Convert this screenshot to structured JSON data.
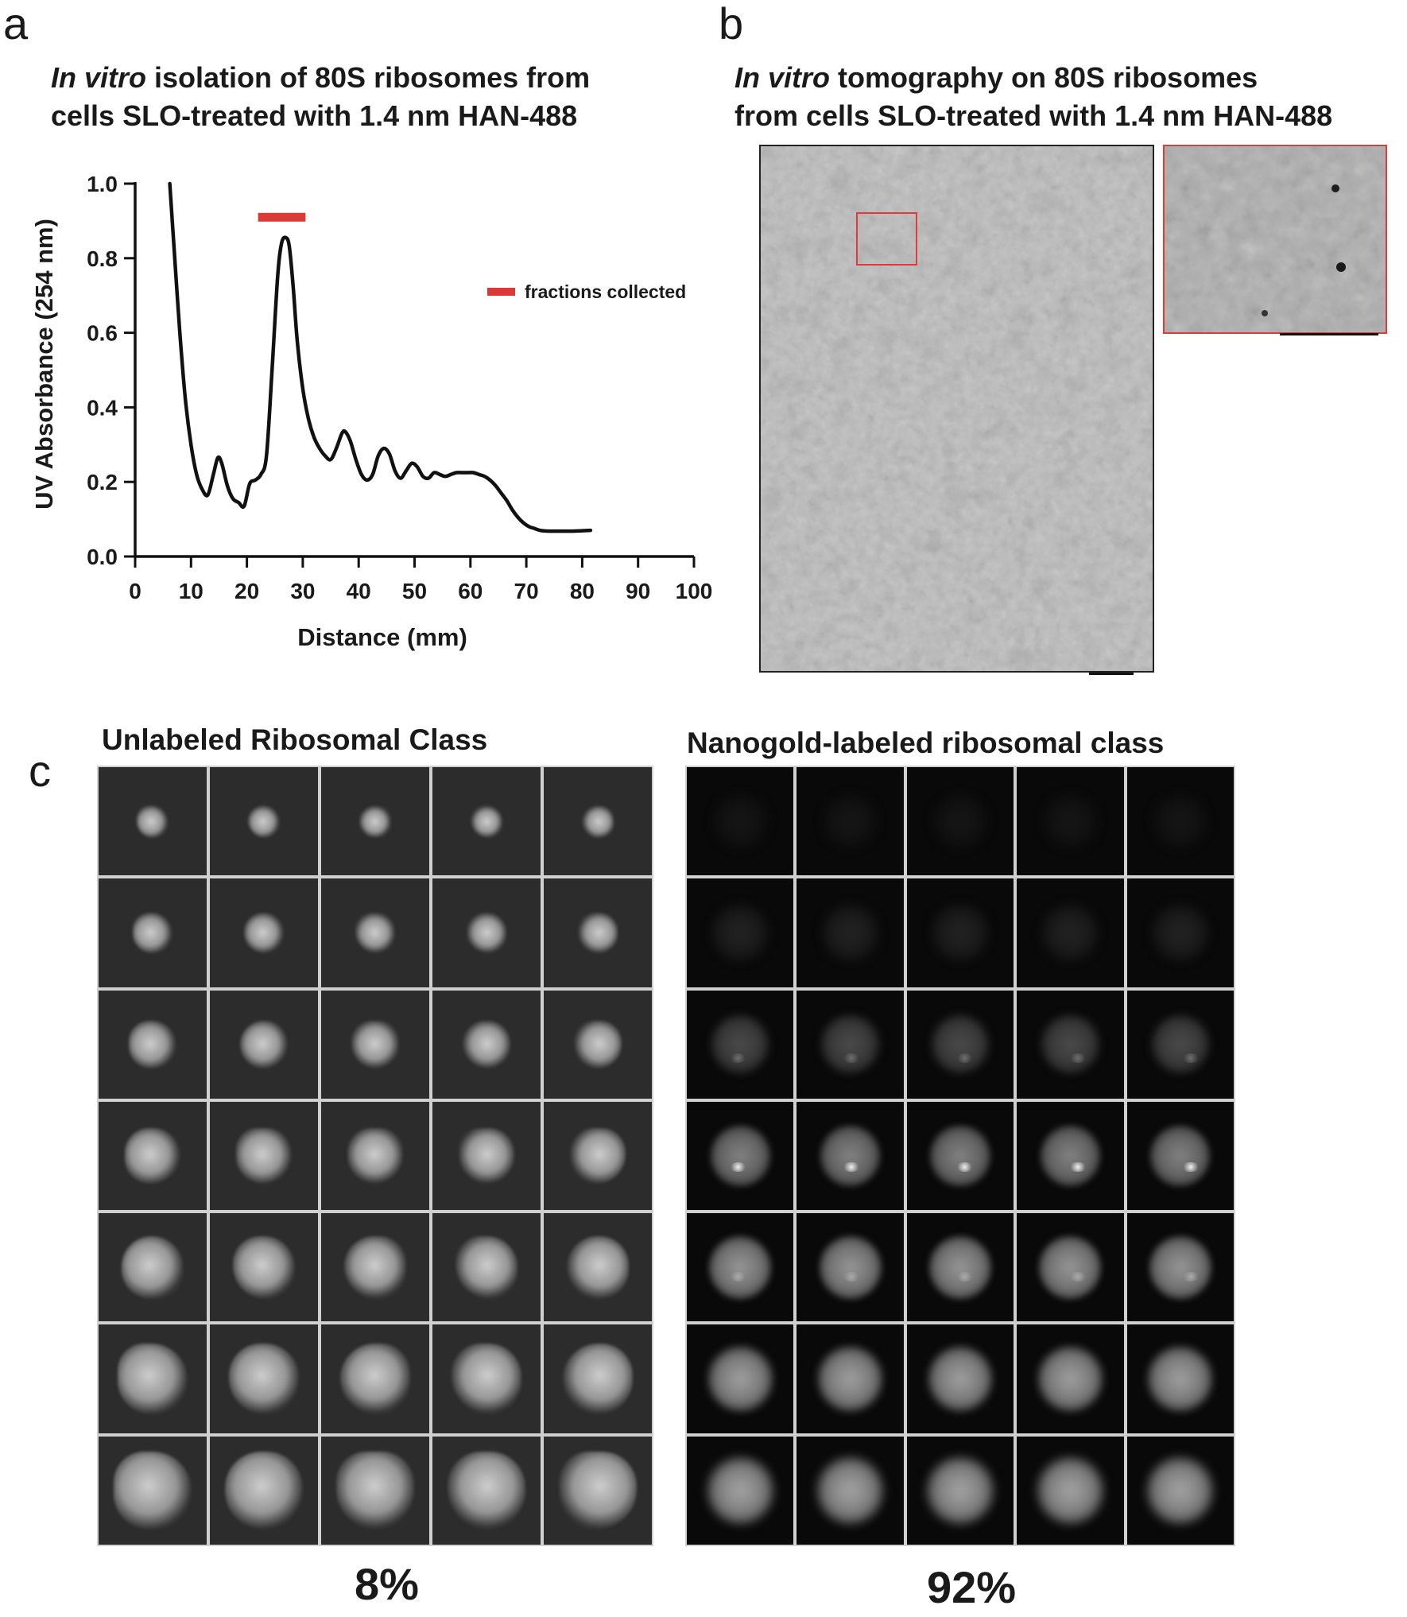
{
  "panel_a": {
    "letter": "a",
    "title_italic": "In vitro",
    "title_rest_line1": " isolation of 80S ribosomes from",
    "title_line2": "cells SLO-treated with 1.4 nm HAN-488"
  },
  "panel_b": {
    "letter": "b",
    "title_italic": "In vitro",
    "title_rest_line1": " tomography on 80S ribosomes",
    "title_line2": "from cells SLO-treated with 1.4 nm HAN-488"
  },
  "panel_c": {
    "letter": "c",
    "left_title": "Unlabeled Ribosomal Class",
    "right_title": "Nanogold-labeled ribosomal class",
    "left_percent": "8%",
    "right_percent": "92%",
    "rows": 7,
    "cols": 5
  },
  "chart_data": {
    "type": "line",
    "xlabel": "Distance (mm)",
    "ylabel": "UV Absorbance (254 nm)",
    "xlim": [
      0,
      100
    ],
    "ylim": [
      0,
      1.0
    ],
    "x_ticks": [
      "0",
      "10",
      "20",
      "30",
      "40",
      "50",
      "60",
      "70",
      "80",
      "90",
      "100"
    ],
    "y_ticks": [
      "0.0",
      "0.2",
      "0.4",
      "0.6",
      "0.8",
      "1.0"
    ],
    "series": [
      {
        "x": [
          6.2,
          7,
          8,
          9,
          10,
          11,
          12,
          13,
          14,
          14.8,
          15.5,
          16.5,
          17.5,
          18.5,
          19.5,
          20.5,
          21.5,
          22.5,
          23.5,
          24.5,
          25.5,
          26.2,
          27,
          27.6,
          28.3,
          29,
          30,
          31,
          32,
          33,
          34,
          35,
          36,
          37,
          37.6,
          38.5,
          39.5,
          40.5,
          41.5,
          42.5,
          43.5,
          44.5,
          45.5,
          46.5,
          47.5,
          48.5,
          49.5,
          50.5,
          51.5,
          52.5,
          53.5,
          54.5,
          55.5,
          56.5,
          57.5,
          58.5,
          59.5,
          60.5,
          61.5,
          62.5,
          63.5,
          64.5,
          65.5,
          66.5,
          67.5,
          68.5,
          69.5,
          70.5,
          71.5,
          72.5,
          74,
          76,
          78,
          80,
          81.5
        ],
        "y": [
          1.0,
          0.82,
          0.6,
          0.42,
          0.3,
          0.22,
          0.18,
          0.165,
          0.22,
          0.265,
          0.25,
          0.19,
          0.155,
          0.145,
          0.135,
          0.195,
          0.205,
          0.22,
          0.27,
          0.5,
          0.75,
          0.84,
          0.855,
          0.83,
          0.72,
          0.58,
          0.45,
          0.37,
          0.32,
          0.29,
          0.27,
          0.26,
          0.29,
          0.33,
          0.335,
          0.31,
          0.26,
          0.22,
          0.205,
          0.22,
          0.27,
          0.29,
          0.275,
          0.23,
          0.21,
          0.23,
          0.25,
          0.24,
          0.215,
          0.21,
          0.225,
          0.22,
          0.215,
          0.22,
          0.225,
          0.225,
          0.225,
          0.225,
          0.22,
          0.215,
          0.205,
          0.19,
          0.17,
          0.15,
          0.125,
          0.105,
          0.09,
          0.08,
          0.075,
          0.07,
          0.068,
          0.068,
          0.068,
          0.069,
          0.07
        ]
      }
    ],
    "legend": {
      "label": "fractions collected",
      "color": "#d93a35",
      "placement": "right"
    },
    "fraction_bar": {
      "x_start": 22,
      "x_end": 30.5,
      "y": 0.91
    },
    "line_color": "#111111",
    "grid": false
  }
}
